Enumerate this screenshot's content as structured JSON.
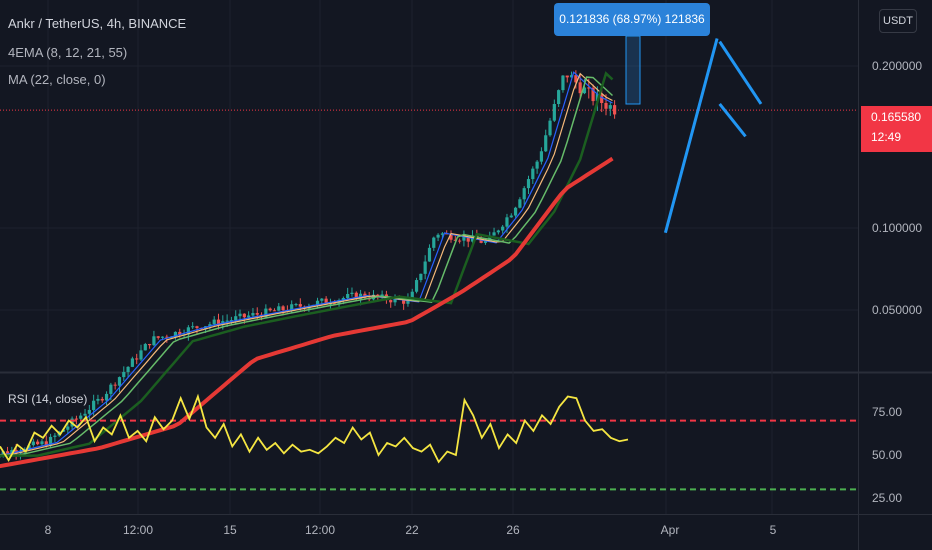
{
  "header": {
    "symbol": "Ankr / TetherUS, 4h, BINANCE",
    "ema": "4EMA (8, 12, 21, 55)",
    "ma": "MA (22, close, 0)"
  },
  "currency_button": "USDT",
  "price_tag": {
    "value": "0.165580",
    "countdown": "12:49"
  },
  "measure_label": "0.121836 (68.97%) 121836",
  "rsi_label": "RSI (14, close)",
  "colors": {
    "background": "#131722",
    "up": "#26a69a",
    "down": "#ef5350",
    "ma": "#e53935",
    "rsi": "#f5e642",
    "pattern": "#2196f3",
    "ema8": "#2962ff",
    "ema12": "#f5b97a",
    "ema21": "#66bb6a",
    "ema55": "#1b5e20"
  },
  "chart_data": [
    {
      "type": "candlestick",
      "title": "Ankr / TetherUS, 4h, BINANCE",
      "scale": "log",
      "y_ticks": [
        "0.200000",
        "0.100000",
        "0.050000"
      ],
      "x_ticks": [
        "8",
        "12:00",
        "15",
        "12:00",
        "22",
        "26",
        "Apr",
        "5"
      ],
      "last_price": 0.16558,
      "close_path": [
        [
          "Mar 6",
          0.038
        ],
        [
          "Mar 8",
          0.04
        ],
        [
          "Mar 10",
          0.048
        ],
        [
          "Mar 12",
          0.062
        ],
        [
          "Mar 14",
          0.066
        ],
        [
          "Mar 16",
          0.069
        ],
        [
          "Mar 18",
          0.072
        ],
        [
          "Mar 20",
          0.075
        ],
        [
          "Mar 22",
          0.073
        ],
        [
          "Mar 23",
          0.098
        ],
        [
          "Mar 25",
          0.094
        ],
        [
          "Mar 26",
          0.108
        ],
        [
          "Mar 27",
          0.135
        ],
        [
          "Mar 28",
          0.195
        ],
        [
          "Mar 29",
          0.176
        ],
        [
          "Mar 30",
          0.166
        ]
      ],
      "ma_22": [
        [
          "Mar 6",
          0.036
        ],
        [
          "Mar 10",
          0.039
        ],
        [
          "Mar 13",
          0.043
        ],
        [
          "Mar 16",
          0.057
        ],
        [
          "Mar 19",
          0.063
        ],
        [
          "Mar 22",
          0.067
        ],
        [
          "Mar 24",
          0.076
        ],
        [
          "Mar 26",
          0.088
        ],
        [
          "Mar 28",
          0.118
        ],
        [
          "Mar 30",
          0.136
        ]
      ],
      "measured_move": {
        "value": 0.121836,
        "percent": 68.97
      }
    },
    {
      "type": "line",
      "title": "RSI (14, close)",
      "y_ticks": [
        "75.00",
        "50.00",
        "25.00"
      ],
      "levels": [
        70,
        30
      ],
      "series": [
        {
          "values": [
            55,
            47,
            56,
            52,
            63,
            60,
            67,
            62,
            70,
            66,
            72,
            58,
            66,
            62,
            73,
            60,
            64,
            58,
            72,
            65,
            70,
            83,
            71,
            84,
            66,
            60,
            68,
            55,
            62,
            52,
            60,
            53,
            57,
            51,
            56,
            52,
            53,
            51,
            55,
            60,
            57,
            66,
            59,
            63,
            50,
            57,
            55,
            60,
            54,
            52,
            56,
            46,
            52,
            50,
            82,
            73,
            60,
            68,
            54,
            62,
            57,
            70,
            64,
            73,
            68,
            78,
            84,
            83,
            70,
            64,
            65,
            60,
            58,
            59
          ]
        }
      ]
    }
  ]
}
